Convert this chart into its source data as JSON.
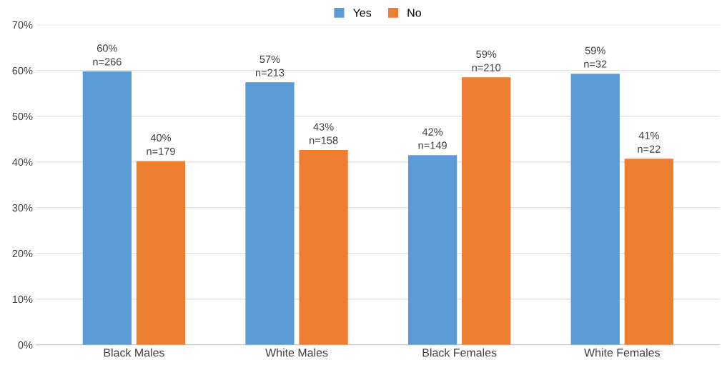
{
  "chart_data": {
    "type": "bar",
    "categories": [
      "Black Males",
      "White Males",
      "Black Females",
      "White Females"
    ],
    "series": [
      {
        "name": "Yes",
        "color": "#5b9bd5",
        "values": [
          59.8,
          57.4,
          41.5,
          59.3
        ],
        "value_labels": [
          "60%\nn=266",
          "57%\nn=213",
          "42%\nn=149",
          "59%\nn=32"
        ]
      },
      {
        "name": "No",
        "color": "#ed7d31",
        "values": [
          40.2,
          42.6,
          58.5,
          40.7
        ],
        "value_labels": [
          "40%\nn=179",
          "43%\nn=158",
          "59%\nn=210",
          "41%\nn=22"
        ]
      }
    ],
    "ylim": [
      0,
      70
    ],
    "yticks": [
      {
        "value": 0,
        "label": "0%"
      },
      {
        "value": 10,
        "label": "10%"
      },
      {
        "value": 20,
        "label": "20%"
      },
      {
        "value": 30,
        "label": "30%"
      },
      {
        "value": 40,
        "label": "40%"
      },
      {
        "value": 50,
        "label": "50%"
      },
      {
        "value": 60,
        "label": "60%"
      },
      {
        "value": 70,
        "label": "70%"
      }
    ],
    "grid": "y",
    "legend": "top"
  }
}
